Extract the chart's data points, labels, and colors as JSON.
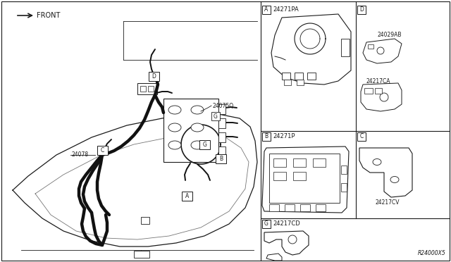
{
  "bg_color": "#ffffff",
  "line_color": "#1a1a1a",
  "dpi": 100,
  "fig_width": 6.4,
  "fig_height": 3.72,
  "diagram_code": "R24000X5",
  "labels": {
    "front": "FRONT",
    "A": "A",
    "B": "B",
    "C": "C",
    "D": "D",
    "G": "G",
    "part_24075Q": "24075Q",
    "part_24078": "24078",
    "part_24271PA": "24271PA",
    "part_24029AB": "24029AB",
    "part_24217CA": "24217CA",
    "part_24271P": "24271P",
    "part_24217CV": "24217CV",
    "part_24217CD": "24217CD"
  }
}
